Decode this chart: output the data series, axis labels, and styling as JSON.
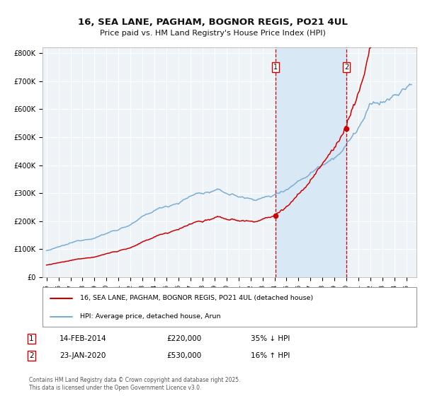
{
  "title": "16, SEA LANE, PAGHAM, BOGNOR REGIS, PO21 4UL",
  "subtitle": "Price paid vs. HM Land Registry's House Price Index (HPI)",
  "ylabel_ticks": [
    "£0",
    "£100K",
    "£200K",
    "£300K",
    "£400K",
    "£500K",
    "£600K",
    "£700K",
    "£800K"
  ],
  "ytick_values": [
    0,
    100000,
    200000,
    300000,
    400000,
    500000,
    600000,
    700000,
    800000
  ],
  "ylim": [
    0,
    820000
  ],
  "hpi_color": "#7aadd4",
  "price_color": "#cc0000",
  "background_color": "#ffffff",
  "plot_bg_color": "#eef3f8",
  "grid_color": "#ffffff",
  "shade_color": "#d8e8f4",
  "dashed_line_color": "#cc0000",
  "marker1_year": 2014,
  "marker1_month": 1,
  "marker1_price": 220000,
  "marker1_date_str": "14-FEB-2014",
  "marker1_price_str": "£220,000",
  "marker1_hpi_str": "35% ↓ HPI",
  "marker2_year": 2020,
  "marker2_month": 0,
  "marker2_price": 530000,
  "marker2_date_str": "23-JAN-2020",
  "marker2_price_str": "£530,000",
  "marker2_hpi_str": "16% ↑ HPI",
  "legend_label_price": "16, SEA LANE, PAGHAM, BOGNOR REGIS, PO21 4UL (detached house)",
  "legend_label_hpi": "HPI: Average price, detached house, Arun",
  "footnote": "Contains HM Land Registry data © Crown copyright and database right 2025.\nThis data is licensed under the Open Government Licence v3.0.",
  "start_year": 1995,
  "end_year": 2025,
  "n_months": 366
}
